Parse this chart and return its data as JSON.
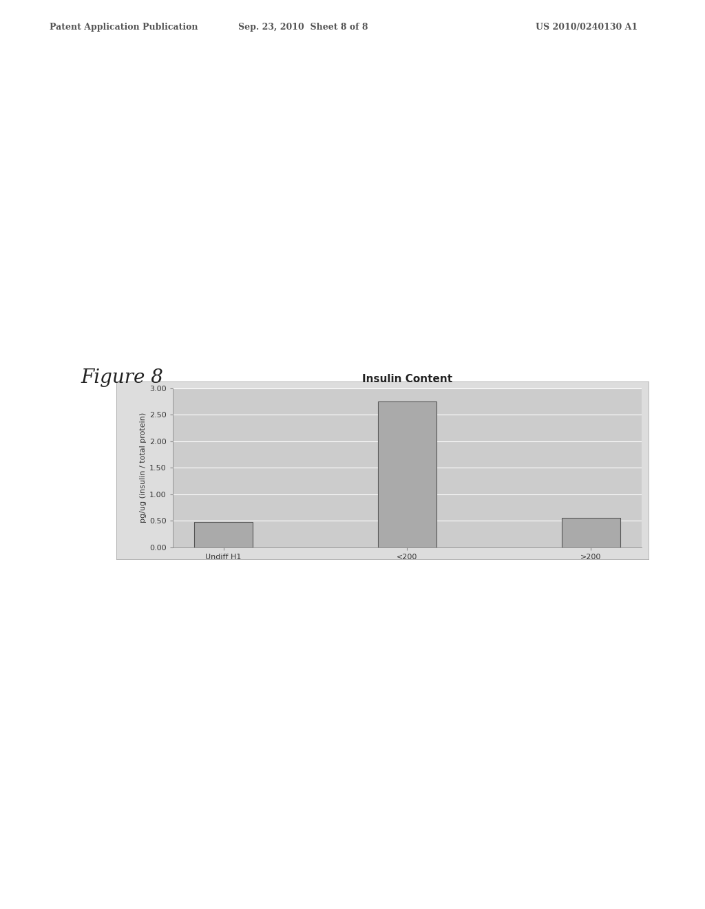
{
  "title": "Insulin Content",
  "categories": [
    "Undiff H1",
    "<200",
    ">200"
  ],
  "values": [
    0.48,
    2.75,
    0.55
  ],
  "ylabel": "pg/ug (insulin / total protein)",
  "ylim": [
    0.0,
    3.0
  ],
  "yticks": [
    0.0,
    0.5,
    1.0,
    1.5,
    2.0,
    2.5,
    3.0
  ],
  "bar_color": "#aaaaaa",
  "bar_edge_color": "#555555",
  "plot_bg_color": "#cccccc",
  "chart_bg_color": "#dddddd",
  "outer_bg_color": "#ffffff",
  "grid_color": "#ffffff",
  "title_fontsize": 11,
  "axis_fontsize": 8,
  "ylabel_fontsize": 8,
  "figure_title": "Figure 8",
  "figure_title_fontsize": 20,
  "header_left": "Patent Application Publication",
  "header_center": "Sep. 23, 2010  Sheet 8 of 8",
  "header_right": "US 2010/0240130 A1",
  "header_fontsize": 9
}
